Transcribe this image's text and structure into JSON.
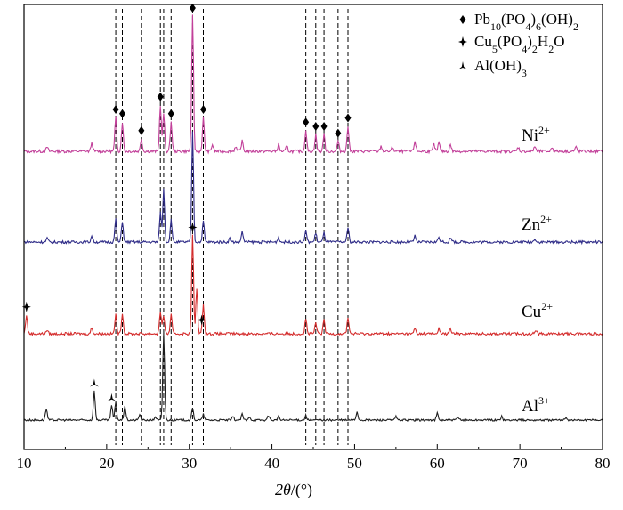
{
  "chart_data": {
    "type": "line",
    "title": "",
    "xlabel_parts": {
      "var": "2θ",
      "unit": "/(°)"
    },
    "ylabel": "",
    "xlim": [
      10,
      80
    ],
    "x_ticks": [
      10,
      20,
      30,
      40,
      50,
      60,
      70,
      80
    ],
    "y_ticks": "none",
    "grid": false,
    "legend_position": "top-right",
    "legend": [
      {
        "symbol": "diamond",
        "name_parts": [
          "Pb",
          "10",
          "(PO",
          "4",
          ")",
          "6",
          "(OH)",
          "2"
        ]
      },
      {
        "symbol": "four-point-star",
        "name_parts": [
          "Cu",
          "5",
          "(PO",
          "4",
          ")",
          "2",
          "H",
          "2",
          "O"
        ]
      },
      {
        "symbol": "three-point-star",
        "name_parts": [
          "Al(OH)",
          "3"
        ]
      }
    ],
    "reference_lines_x": [
      21.1,
      21.9,
      24.2,
      26.5,
      26.9,
      27.8,
      30.4,
      31.7,
      44.1,
      45.3,
      46.3,
      48.0,
      49.2
    ],
    "series": [
      {
        "name_base": "Ni",
        "name_sup": "2+",
        "color": "#c2409a",
        "peaks": [
          [
            12.8,
            0.05
          ],
          [
            18.2,
            0.1
          ],
          [
            21.1,
            0.4
          ],
          [
            21.9,
            0.35
          ],
          [
            24.2,
            0.15
          ],
          [
            26.5,
            0.55
          ],
          [
            26.9,
            0.45
          ],
          [
            27.8,
            0.35
          ],
          [
            30.4,
            1.6
          ],
          [
            31.7,
            0.4
          ],
          [
            32.8,
            0.08
          ],
          [
            35.6,
            0.06
          ],
          [
            36.4,
            0.12
          ],
          [
            40.8,
            0.08
          ],
          [
            41.8,
            0.06
          ],
          [
            44.1,
            0.25
          ],
          [
            45.3,
            0.2
          ],
          [
            46.3,
            0.2
          ],
          [
            48.0,
            0.12
          ],
          [
            49.2,
            0.3
          ],
          [
            53.2,
            0.06
          ],
          [
            54.6,
            0.05
          ],
          [
            57.3,
            0.12
          ],
          [
            59.6,
            0.08
          ],
          [
            60.2,
            0.1
          ],
          [
            61.6,
            0.08
          ],
          [
            69.8,
            0.05
          ],
          [
            71.8,
            0.06
          ],
          [
            73.9,
            0.05
          ],
          [
            76.8,
            0.05
          ]
        ]
      },
      {
        "name_base": "Zn",
        "name_sup": "2+",
        "color": "#2f2c88",
        "peaks": [
          [
            12.8,
            0.05
          ],
          [
            18.2,
            0.08
          ],
          [
            21.1,
            0.3
          ],
          [
            21.9,
            0.28
          ],
          [
            26.5,
            0.4
          ],
          [
            26.9,
            0.7
          ],
          [
            27.8,
            0.3
          ],
          [
            30.4,
            1.45
          ],
          [
            31.7,
            0.28
          ],
          [
            34.9,
            0.05
          ],
          [
            36.4,
            0.14
          ],
          [
            40.8,
            0.06
          ],
          [
            44.1,
            0.15
          ],
          [
            45.3,
            0.12
          ],
          [
            46.3,
            0.12
          ],
          [
            49.2,
            0.2
          ],
          [
            57.3,
            0.08
          ],
          [
            60.2,
            0.07
          ],
          [
            61.6,
            0.06
          ],
          [
            71.8,
            0.05
          ]
        ]
      },
      {
        "name_base": "Cu",
        "name_sup": "2+",
        "color": "#d42c2c",
        "peaks": [
          [
            10.3,
            0.25
          ],
          [
            12.8,
            0.05
          ],
          [
            18.2,
            0.08
          ],
          [
            21.1,
            0.25
          ],
          [
            21.9,
            0.28
          ],
          [
            26.5,
            0.3
          ],
          [
            26.9,
            0.25
          ],
          [
            27.8,
            0.25
          ],
          [
            30.4,
            1.3
          ],
          [
            30.9,
            0.6
          ],
          [
            31.7,
            0.4
          ],
          [
            44.1,
            0.2
          ],
          [
            45.3,
            0.15
          ],
          [
            46.3,
            0.18
          ],
          [
            49.2,
            0.22
          ],
          [
            57.3,
            0.07
          ],
          [
            60.2,
            0.07
          ],
          [
            61.6,
            0.06
          ],
          [
            72.0,
            0.05
          ]
        ]
      },
      {
        "name_base": "Al",
        "name_sup": "3+",
        "color": "#1e1e1e",
        "peaks": [
          [
            12.7,
            0.2
          ],
          [
            18.5,
            0.5
          ],
          [
            20.6,
            0.25
          ],
          [
            21.1,
            0.3
          ],
          [
            22.2,
            0.25
          ],
          [
            24.0,
            0.1
          ],
          [
            25.9,
            0.06
          ],
          [
            26.9,
            1.5
          ],
          [
            30.4,
            0.2
          ],
          [
            31.7,
            0.1
          ],
          [
            35.3,
            0.06
          ],
          [
            36.4,
            0.1
          ],
          [
            37.3,
            0.06
          ],
          [
            39.6,
            0.08
          ],
          [
            40.8,
            0.06
          ],
          [
            44.1,
            0.08
          ],
          [
            50.3,
            0.15
          ],
          [
            55.0,
            0.06
          ],
          [
            60.0,
            0.12
          ],
          [
            62.5,
            0.05
          ],
          [
            67.8,
            0.06
          ],
          [
            75.6,
            0.05
          ]
        ]
      }
    ],
    "markers": [
      {
        "symbol": "diamond",
        "x": [
          21.1,
          21.9,
          24.2,
          26.5,
          27.8,
          30.4,
          31.7,
          44.1,
          45.3,
          46.3,
          48.0,
          49.2
        ],
        "series": "Ni"
      },
      {
        "symbol": "four-point-star",
        "x": [
          10.3,
          30.4,
          31.5
        ],
        "series": "Cu"
      },
      {
        "symbol": "three-point-star",
        "x": [
          18.5,
          20.6
        ],
        "series": "Al"
      }
    ]
  }
}
